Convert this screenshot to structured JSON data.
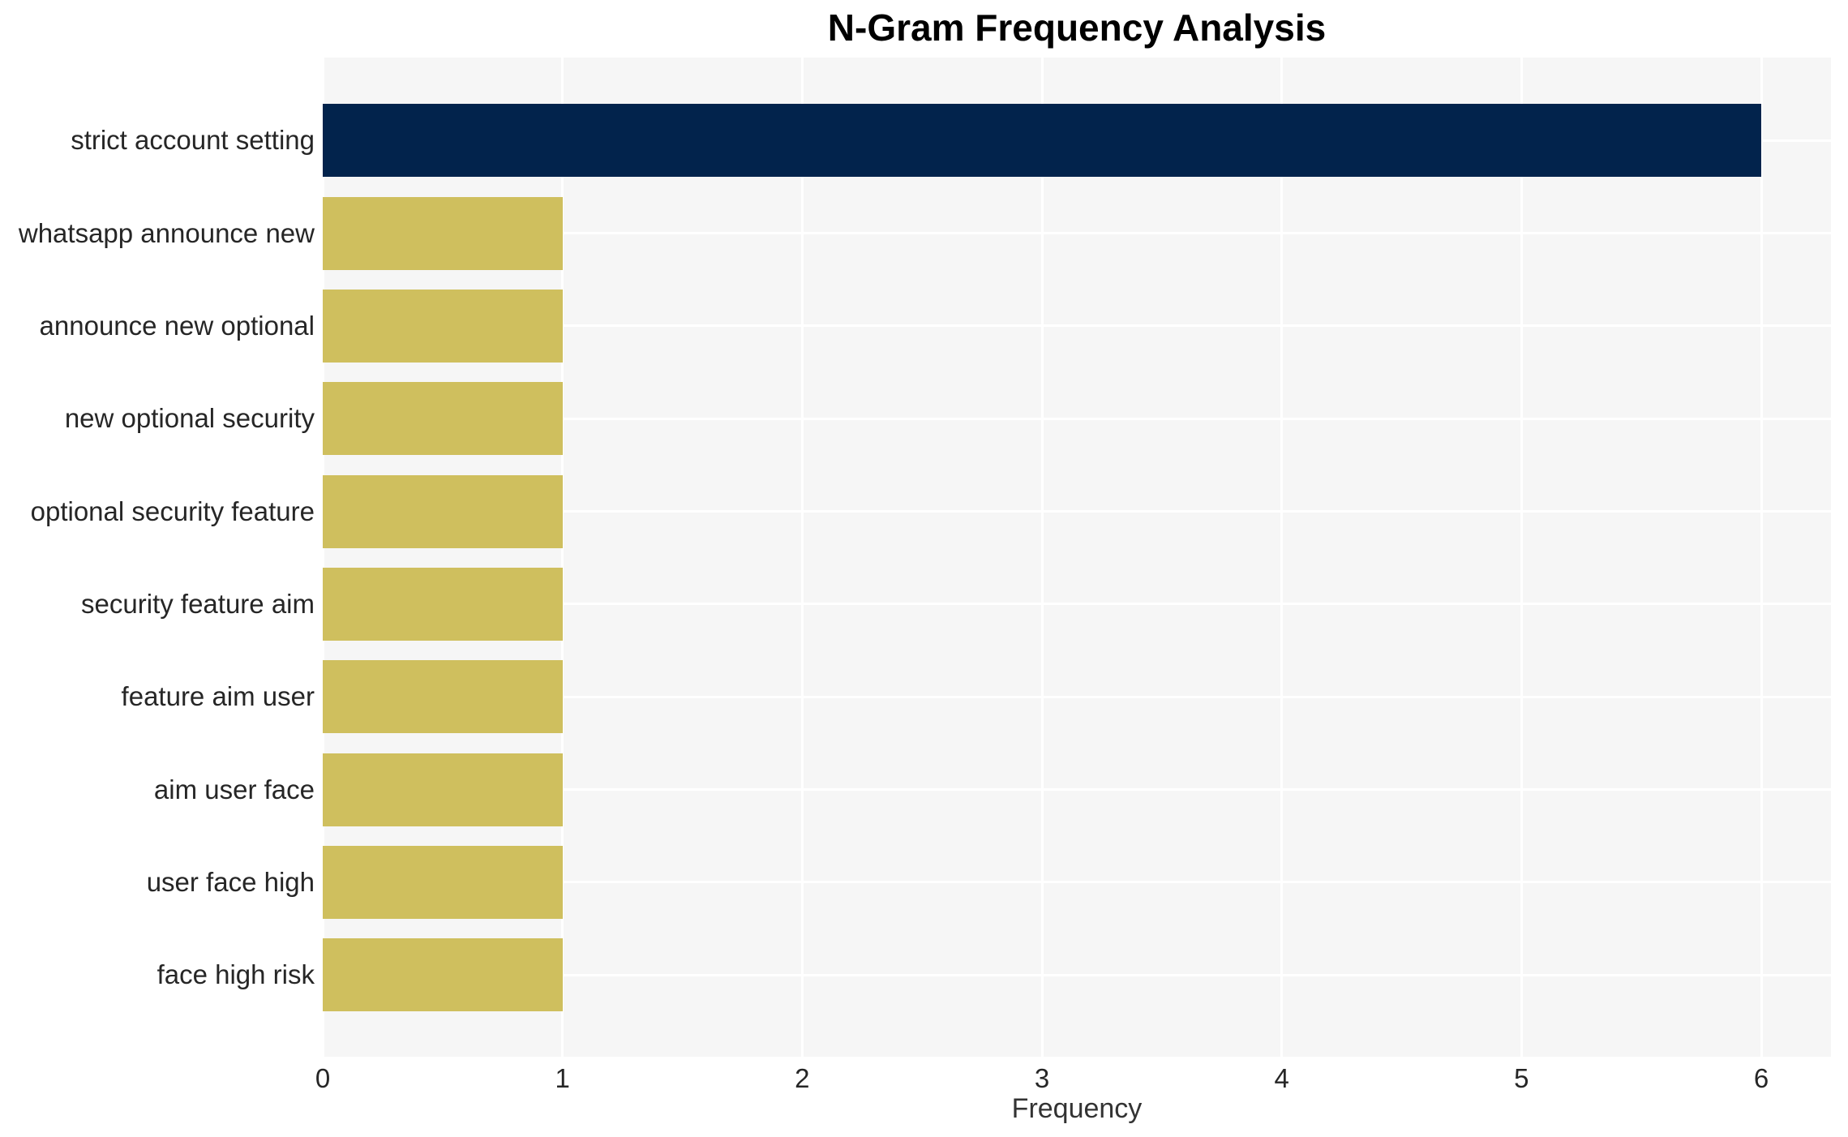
{
  "chart_data": {
    "type": "bar",
    "orientation": "horizontal",
    "title": "N-Gram Frequency Analysis",
    "xlabel": "Frequency",
    "ylabel": "",
    "categories": [
      "strict account setting",
      "whatsapp announce new",
      "announce new optional",
      "new optional security",
      "optional security feature",
      "security feature aim",
      "feature aim user",
      "aim user face",
      "user face high",
      "face high risk"
    ],
    "values": [
      6,
      1,
      1,
      1,
      1,
      1,
      1,
      1,
      1,
      1
    ],
    "bar_colors": [
      "#02234c",
      "#cfbf5e",
      "#cfbf5e",
      "#cfbf5e",
      "#cfbf5e",
      "#cfbf5e",
      "#cfbf5e",
      "#cfbf5e",
      "#cfbf5e",
      "#cfbf5e"
    ],
    "xticks": [
      "0",
      "1",
      "2",
      "3",
      "4",
      "5",
      "6"
    ],
    "xlim": [
      0,
      6.29
    ],
    "grid": true,
    "legend_position": "none",
    "colors": {
      "highlight_bar": "#02234c",
      "default_bar": "#cfbf5e",
      "plot_background": "#f6f6f6",
      "gridline": "#ffffff",
      "tick_text": "#262626",
      "axis_label_text": "#333333",
      "title_text": "#000000",
      "figure_background": "#ffffff"
    }
  }
}
